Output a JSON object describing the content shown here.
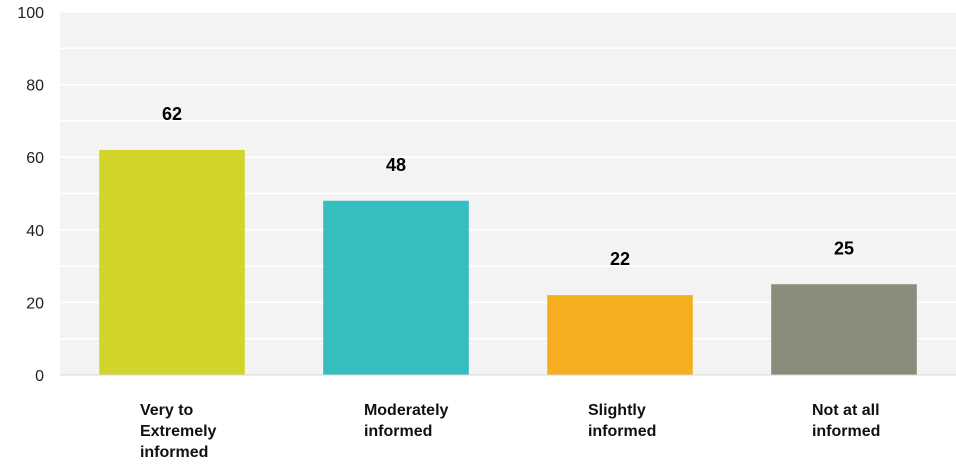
{
  "chart_data": {
    "type": "bar",
    "categories": [
      [
        "Very to",
        "Extremely",
        "informed"
      ],
      [
        "Moderately",
        "informed"
      ],
      [
        "Slightly",
        "informed"
      ],
      [
        "Not at all",
        "informed"
      ]
    ],
    "values": [
      62,
      48,
      22,
      25
    ],
    "colors": [
      "#d1d52b",
      "#34bec0",
      "#f6ae21",
      "#8a8b7a"
    ],
    "yticks": [
      0,
      20,
      40,
      60,
      80,
      100
    ],
    "ylim": [
      0,
      100
    ],
    "grid": true,
    "grid_color": "#ffffff",
    "plot_background": "#f3f3f3",
    "data_labels": true
  }
}
